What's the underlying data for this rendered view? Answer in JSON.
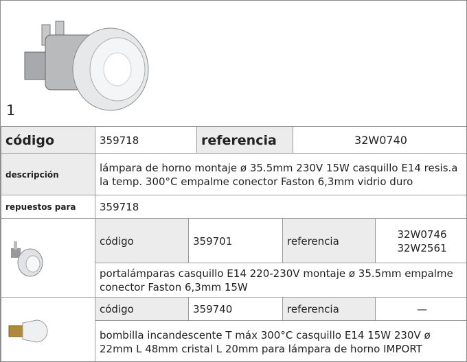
{
  "header": {
    "item_number": "1"
  },
  "main": {
    "code_label": "código",
    "code": "359718",
    "reference_label": "referencia",
    "reference": "32W0740",
    "description_label": "descripción",
    "description": "lámpara de horno  montaje ø 35.5mm 230V 15W casquillo E14 resis.a la temp. 300°C empalme conector Faston 6,3mm vidrio duro",
    "spares_label": "repuestos para",
    "spares_value": "359718"
  },
  "parts": [
    {
      "code_label": "código",
      "code": "359701",
      "reference_label": "referencia",
      "references": [
        "32W0746",
        "32W2561"
      ],
      "description": "portalámparas  casquillo E14 220-230V montaje ø 35.5mm empalme conector Faston 6,3mm 15W"
    },
    {
      "code_label": "código",
      "code": "359740",
      "reference_label": "referencia",
      "references": [
        "—"
      ],
      "description": "bombilla incandescente  T máx 300°C casquillo E14 15W 230V ø 22mm L 48mm cristal L 20mm para lámpara de horno IMPORT"
    }
  ]
}
